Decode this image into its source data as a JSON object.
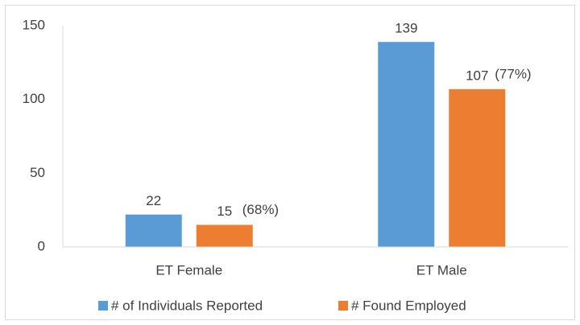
{
  "chart_data": {
    "type": "bar",
    "categories": [
      "ET Female",
      "ET Male"
    ],
    "series": [
      {
        "name": "# of Individuals Reported",
        "color": "#5b9bd5",
        "values": [
          22,
          139
        ]
      },
      {
        "name": "# Found Employed",
        "color": "#ed7d31",
        "values": [
          15,
          107
        ]
      }
    ],
    "annotations": [
      "(68%)",
      "(77%)"
    ],
    "ylim": [
      0,
      150
    ],
    "yticks": [
      0,
      50,
      100,
      150
    ],
    "grid": false,
    "legend": "bottom"
  }
}
